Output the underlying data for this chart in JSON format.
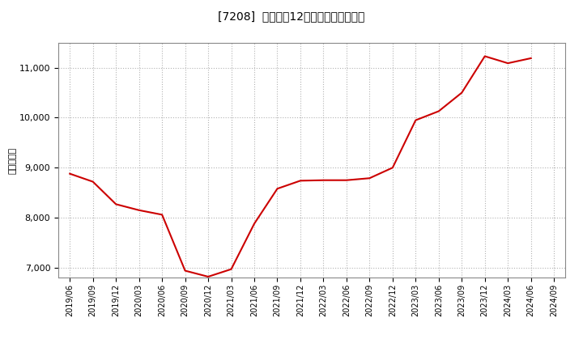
{
  "title": "[7208]  売上高の12か月移動合計の推移",
  "ylabel": "（百万円）",
  "line_color": "#cc0000",
  "bg_color": "#ffffff",
  "plot_bg_color": "#ffffff",
  "grid_color": "#aaaaaa",
  "ylim": [
    6800,
    11500
  ],
  "yticks": [
    7000,
    8000,
    9000,
    10000,
    11000
  ],
  "dates": [
    "2019/06",
    "2019/09",
    "2019/12",
    "2020/03",
    "2020/06",
    "2020/09",
    "2020/12",
    "2021/03",
    "2021/06",
    "2021/09",
    "2021/12",
    "2022/03",
    "2022/06",
    "2022/09",
    "2022/12",
    "2023/03",
    "2023/06",
    "2023/09",
    "2023/12",
    "2024/03",
    "2024/06",
    "2024/09"
  ],
  "values": [
    8880,
    8720,
    8270,
    8150,
    8060,
    6940,
    6820,
    6970,
    7880,
    8580,
    8740,
    8750,
    8750,
    8790,
    9000,
    9950,
    10130,
    10500,
    11230,
    11090,
    11190,
    null
  ],
  "xtick_labels": [
    "2019/06",
    "2019/09",
    "2019/12",
    "2020/03",
    "2020/06",
    "2020/09",
    "2020/12",
    "2021/03",
    "2021/06",
    "2021/09",
    "2021/12",
    "2022/03",
    "2022/06",
    "2022/09",
    "2022/12",
    "2023/03",
    "2023/06",
    "2023/09",
    "2023/12",
    "2024/03",
    "2024/06",
    "2024/09"
  ]
}
